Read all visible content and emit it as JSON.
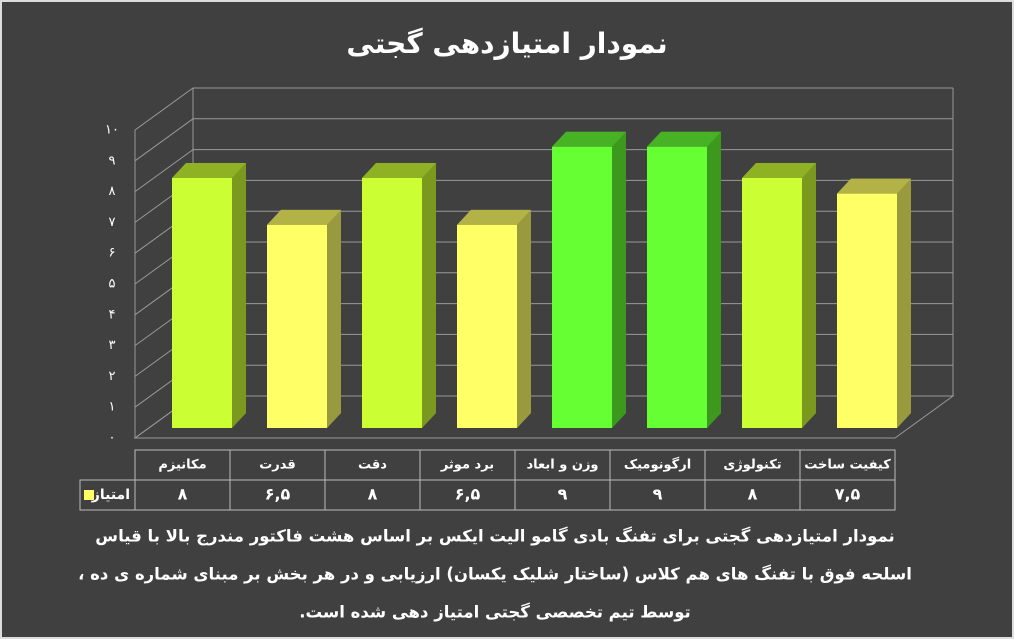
{
  "chart_data": {
    "type": "bar3d",
    "title": "نمودار امتیازدهی گجتی",
    "categories": [
      "مکانیزم",
      "قدرت",
      "دقت",
      "برد موثر",
      "وزن و ابعاد",
      "ارگونومیک",
      "تکنولوژی",
      "کیفیت ساخت"
    ],
    "series": [
      {
        "name": "امتیاز",
        "color": "#ffff66",
        "values": [
          8,
          6.5,
          8,
          6.5,
          9,
          9,
          8,
          7.5
        ],
        "value_labels": [
          "۸",
          "۶,۵",
          "۸",
          "۶,۵",
          "۹",
          "۹",
          "۸",
          "۷,۵"
        ],
        "colors": [
          "#ccff33",
          "#ffff66",
          "#ccff33",
          "#ffff66",
          "#66ff33",
          "#66ff33",
          "#ccff33",
          "#ffff66"
        ]
      }
    ],
    "ylim": [
      0,
      10
    ],
    "yticks": [
      {
        "value": 0,
        "label": "۰"
      },
      {
        "value": 1,
        "label": "۱"
      },
      {
        "value": 2,
        "label": "۲"
      },
      {
        "value": 3,
        "label": "۳"
      },
      {
        "value": 4,
        "label": "۴"
      },
      {
        "value": 5,
        "label": "۵"
      },
      {
        "value": 6,
        "label": "۶"
      },
      {
        "value": 7,
        "label": "۷"
      },
      {
        "value": 8,
        "label": "۸"
      },
      {
        "value": 9,
        "label": "۹"
      },
      {
        "value": 10,
        "label": "۱۰"
      }
    ],
    "grid": true,
    "caption": [
      "نمودار امتیازدهی گجتی برای تفنگ بادی گامو الیت ایکس بر اساس هشت فاکتور مندرج بالا با قیاس",
      "اسلحه فوق با تفنگ های هم کلاس (ساختار شلیک یکسان) ارزیابی و در هر بخش بر مبنای شماره ی ده ،",
      "توسط تیم تخصصی گجتی امتیاز دهی شده است."
    ]
  }
}
